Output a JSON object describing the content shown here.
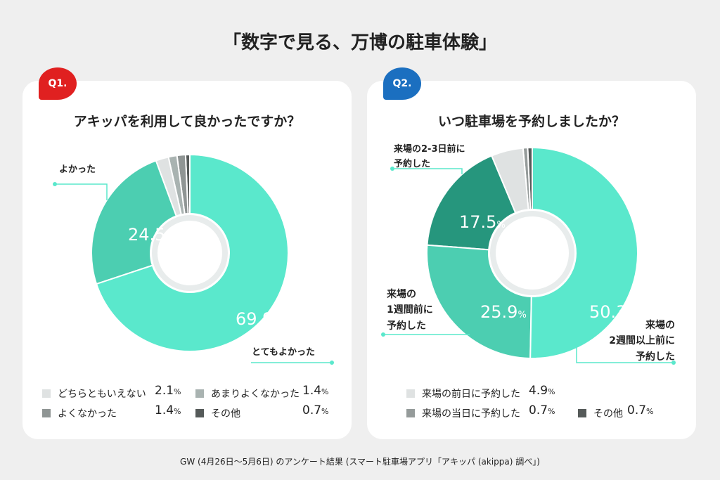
{
  "title": "「数字で見る、万博の駐車体験」",
  "footer": "GW (4月26日〜5月6日) のアンケート結果 (スマート駐車場アプリ「アキッパ (akippa) 調べ」)",
  "colors": {
    "q1_badge": "#e02020",
    "q2_badge": "#1b6fc0"
  },
  "chart_data": [
    {
      "type": "pie",
      "badge": "Q1.",
      "title": "アキッパを利用して良かったですか？",
      "categories": [
        "とてもよかった",
        "よかった",
        "どちらともいえない",
        "あまりよくなかった",
        "よくなかった",
        "その他"
      ],
      "values": [
        69.9,
        24.5,
        2.1,
        1.4,
        1.4,
        0.7
      ],
      "value_labels": [
        "69.9",
        "24.5",
        "2.1",
        "1.4",
        "1.4",
        "0.7"
      ],
      "colors": [
        "#5ae8cc",
        "#4cceb1",
        "#dfe2e2",
        "#a9b3b1",
        "#8f9594",
        "#555a59"
      ],
      "unit": "%",
      "donut": true
    },
    {
      "type": "pie",
      "badge": "Q2.",
      "title": "いつ駐車場を予約しましたか？",
      "categories": [
        "来場の2週間以上前に予約した",
        "来場の1週間前に予約した",
        "来場の2-3日前に予約した",
        "来場の前日に予約した",
        "来場の当日に予約した",
        "その他"
      ],
      "callouts": [
        [
          "来場の",
          "2週間以上前に",
          "予約した"
        ],
        [
          "来場の",
          "1週間前に",
          "予約した"
        ],
        [
          "来場の2-3日前に",
          "予約した"
        ]
      ],
      "values": [
        50.3,
        25.9,
        17.5,
        4.9,
        0.7,
        0.7
      ],
      "value_labels": [
        "50.3",
        "25.9",
        "17.5",
        "4.9",
        "0.7",
        "0.7"
      ],
      "colors": [
        "#5ae8cc",
        "#4cceb1",
        "#26967d",
        "#dfe2e2",
        "#959b9a",
        "#555a59"
      ],
      "unit": "%",
      "donut": true
    }
  ]
}
